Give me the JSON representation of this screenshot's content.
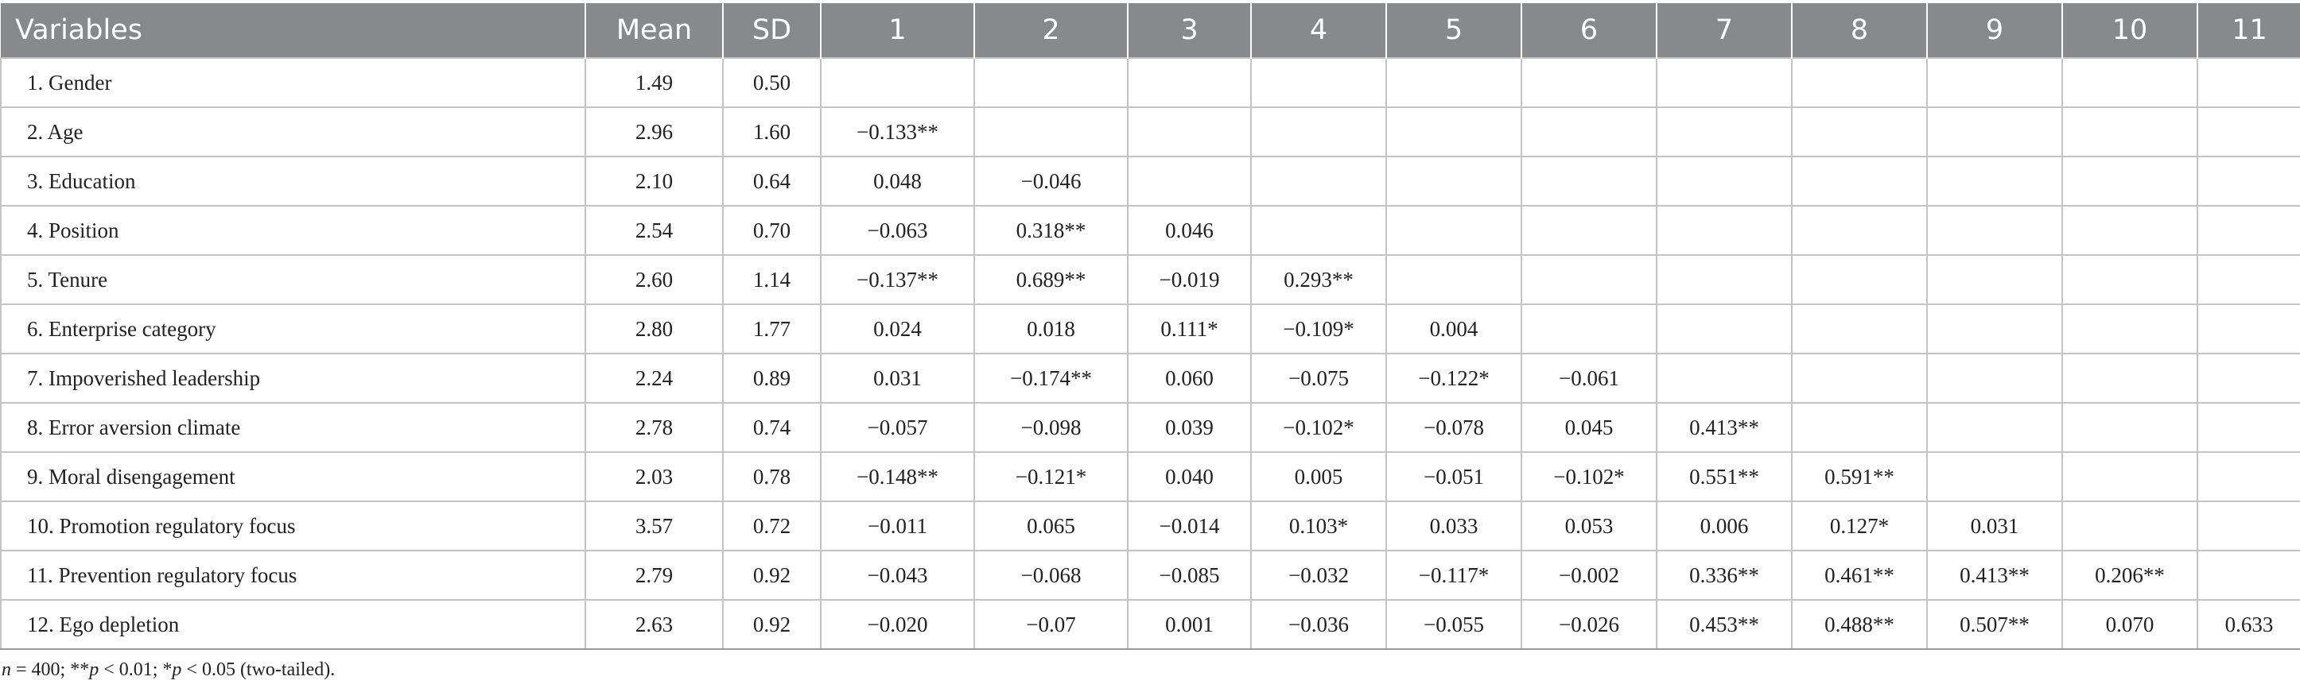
{
  "headers": [
    "Variables",
    "Mean",
    "SD",
    "1",
    "2",
    "3",
    "4",
    "5",
    "6",
    "7",
    "8",
    "9",
    "10",
    "11"
  ],
  "rows": [
    {
      "variable": "1.  Gender",
      "mean": "1.49",
      "sd": "0.50",
      "cells": [
        "",
        "",
        "",
        "",
        "",
        "",
        "",
        "",
        "",
        "",
        ""
      ]
    },
    {
      "variable": "2.  Age",
      "mean": "2.96",
      "sd": "1.60",
      "cells": [
        "−0.133**",
        "",
        "",
        "",
        "",
        "",
        "",
        "",
        "",
        "",
        ""
      ]
    },
    {
      "variable": "3.  Education",
      "mean": "2.10",
      "sd": "0.64",
      "cells": [
        "0.048",
        "−0.046",
        "",
        "",
        "",
        "",
        "",
        "",
        "",
        "",
        ""
      ]
    },
    {
      "variable": "4.  Position",
      "mean": "2.54",
      "sd": "0.70",
      "cells": [
        "−0.063",
        "0.318**",
        "0.046",
        "",
        "",
        "",
        "",
        "",
        "",
        "",
        ""
      ]
    },
    {
      "variable": "5.  Tenure",
      "mean": "2.60",
      "sd": "1.14",
      "cells": [
        "−0.137**",
        "0.689**",
        "−0.019",
        "0.293**",
        "",
        "",
        "",
        "",
        "",
        "",
        ""
      ]
    },
    {
      "variable": "6.  Enterprise category",
      "mean": "2.80",
      "sd": "1.77",
      "cells": [
        "0.024",
        "0.018",
        "0.111*",
        "−0.109*",
        "0.004",
        "",
        "",
        "",
        "",
        "",
        ""
      ]
    },
    {
      "variable": "7.  Impoverished leadership",
      "mean": "2.24",
      "sd": "0.89",
      "cells": [
        "0.031",
        "−0.174**",
        "0.060",
        "−0.075",
        "−0.122*",
        "−0.061",
        "",
        "",
        "",
        "",
        ""
      ]
    },
    {
      "variable": "8.  Error aversion climate",
      "mean": "2.78",
      "sd": "0.74",
      "cells": [
        "−0.057",
        "−0.098",
        "0.039",
        "−0.102*",
        "−0.078",
        "0.045",
        "0.413**",
        "",
        "",
        "",
        ""
      ]
    },
    {
      "variable": "9.  Moral disengagement",
      "mean": "2.03",
      "sd": "0.78",
      "cells": [
        "−0.148**",
        "−0.121*",
        "0.040",
        "0.005",
        "−0.051",
        "−0.102*",
        "0.551**",
        "0.591**",
        "",
        "",
        ""
      ]
    },
    {
      "variable": "10.  Promotion regulatory focus",
      "mean": "3.57",
      "sd": "0.72",
      "cells": [
        "−0.011",
        "0.065",
        "−0.014",
        "0.103*",
        "0.033",
        "0.053",
        "0.006",
        "0.127*",
        "0.031",
        "",
        ""
      ]
    },
    {
      "variable": "11.  Prevention regulatory focus",
      "mean": "2.79",
      "sd": "0.92",
      "cells": [
        "−0.043",
        "−0.068",
        "−0.085",
        "−0.032",
        "−0.117*",
        "−0.002",
        "0.336**",
        "0.461**",
        "0.413**",
        "0.206**",
        ""
      ]
    },
    {
      "variable": "12.  Ego depletion",
      "mean": "2.63",
      "sd": "0.92",
      "cells": [
        "−0.020",
        "−0.07",
        "0.001",
        "−0.036",
        "−0.055",
        "−0.026",
        "0.453**",
        "0.488**",
        "0.507**",
        "0.070",
        "0.633"
      ]
    }
  ],
  "footnote": {
    "n_symbol": "n",
    "n_text": " = 400; **",
    "p1_symbol": "p",
    "p1_text": " < 0.01; *",
    "p2_symbol": "p",
    "p2_text": " < 0.05 (two-tailed)."
  }
}
